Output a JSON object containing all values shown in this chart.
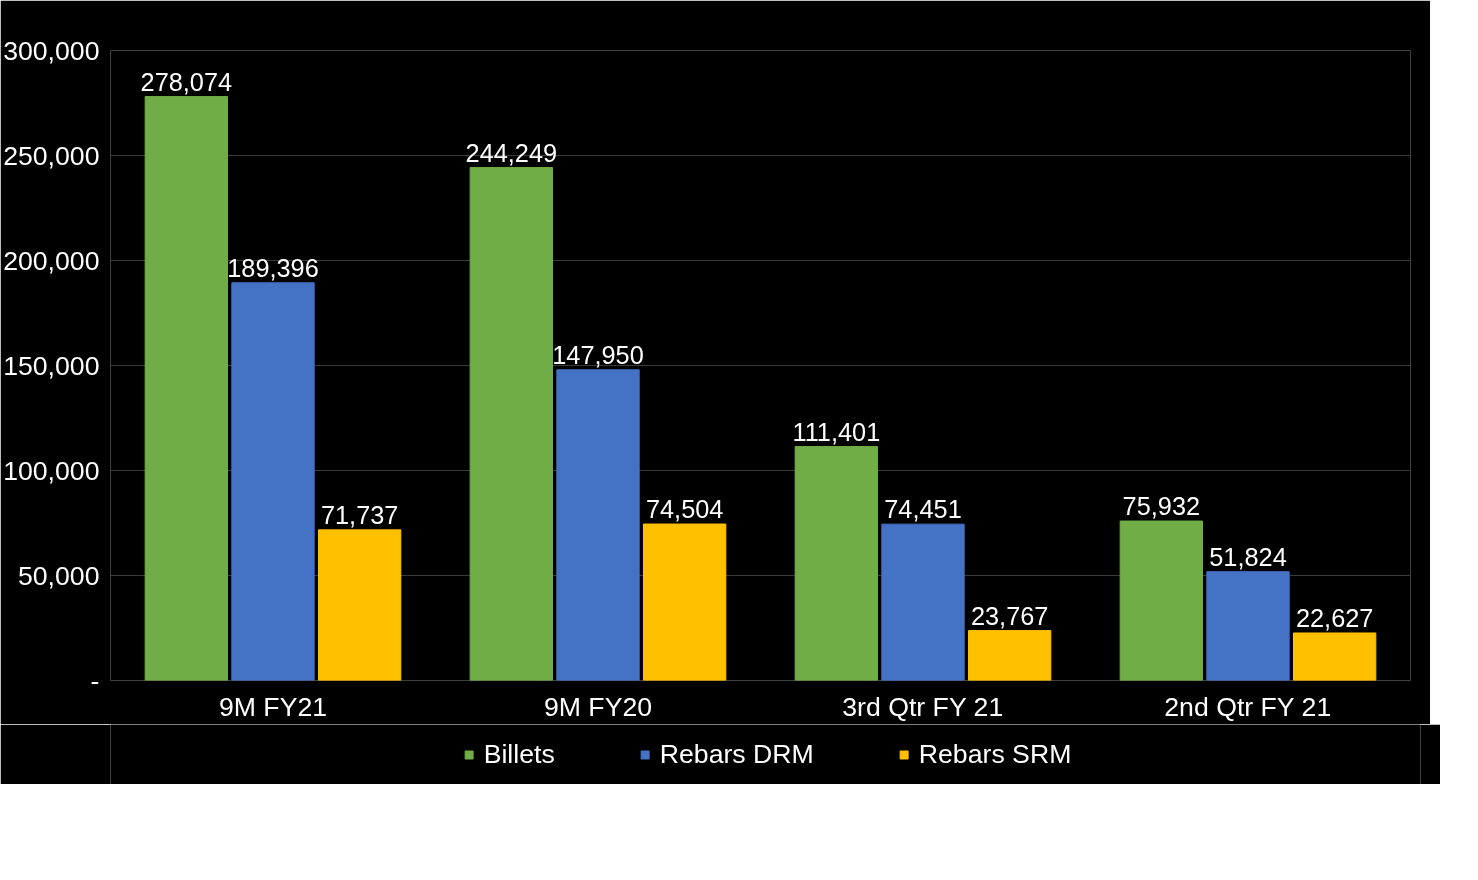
{
  "chart_data": {
    "type": "bar",
    "categories": [
      "9M FY21",
      "9M FY20",
      "3rd Qtr FY 21",
      "2nd Qtr FY 21"
    ],
    "series": [
      {
        "name": "Billets",
        "color": "#70ad47",
        "values": [
          278074,
          244249,
          111401,
          75932
        ],
        "value_labels": [
          "278,074",
          "244,249",
          "111,401",
          "75,932"
        ]
      },
      {
        "name": "Rebars DRM",
        "color": "#4472c4",
        "values": [
          189396,
          147950,
          74451,
          51824
        ],
        "value_labels": [
          "189,396",
          "147,950",
          "74,451",
          "51,824"
        ]
      },
      {
        "name": "Rebars SRM",
        "color": "#ffc000",
        "values": [
          71737,
          74504,
          23767,
          22627
        ],
        "value_labels": [
          "71,737",
          "74,504",
          "23,767",
          "22,627"
        ]
      }
    ],
    "ylim": [
      0,
      300000
    ],
    "yticks": [
      {
        "value": 0,
        "label": "-"
      },
      {
        "value": 50000,
        "label": "50,000"
      },
      {
        "value": 100000,
        "label": "100,000"
      },
      {
        "value": 150000,
        "label": "150,000"
      },
      {
        "value": 200000,
        "label": "200,000"
      },
      {
        "value": 250000,
        "label": "250,000"
      },
      {
        "value": 300000,
        "label": "300,000"
      }
    ],
    "grid": "y",
    "legend": "bottom",
    "data_labels": true
  }
}
